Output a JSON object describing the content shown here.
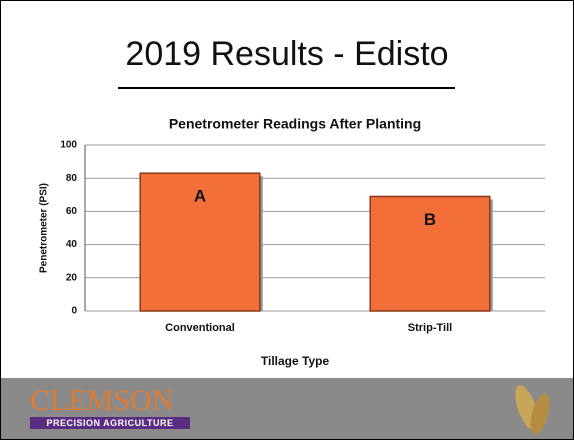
{
  "slide_title": "2019 Results - Edisto",
  "chart_data": {
    "type": "bar",
    "title": "Penetrometer Readings After Planting",
    "x_label": "Tillage Type",
    "y_label": "Penetrometer (PSI)",
    "categories": [
      "Conventional",
      "Strip-Till"
    ],
    "values": [
      83,
      69
    ],
    "bar_labels": [
      "A",
      "B"
    ],
    "color": "#f36f3a",
    "ylim": [
      0,
      100
    ],
    "yticks": [
      0,
      20,
      40,
      60,
      80,
      100
    ],
    "grid": true
  },
  "footer": {
    "logo": "CLEMSON",
    "tagline": "PRECISION AGRICULTURE"
  }
}
